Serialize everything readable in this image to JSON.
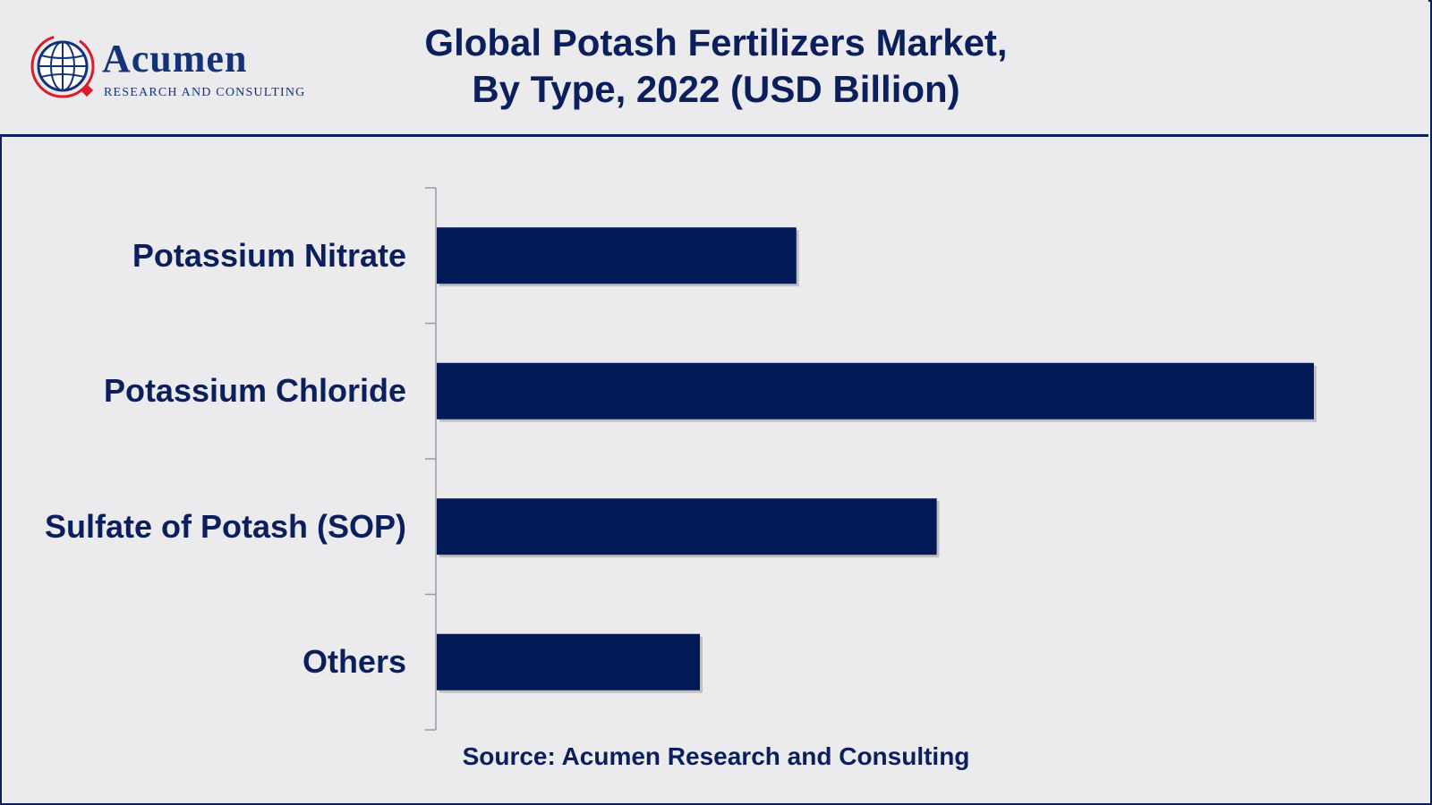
{
  "header": {
    "logo": {
      "name": "Acumen",
      "tagline": "RESEARCH AND CONSULTING",
      "icon": "globe-icon"
    },
    "title_line1": "Global Potash Fertilizers Market,",
    "title_line2": "By Type, 2022 (USD Billion)"
  },
  "colors": {
    "bar": "#021b57",
    "text": "#0b1f5c",
    "background": "#ebebee",
    "accent_red": "#d81e2a"
  },
  "chart_data": {
    "type": "bar",
    "orientation": "horizontal",
    "categories": [
      "Potassium Nitrate",
      "Potassium Chloride",
      "Sulfate of Potash (SOP)",
      "Others"
    ],
    "values": [
      4.1,
      10.0,
      5.7,
      3.0
    ],
    "xlim": [
      0,
      10.0
    ],
    "xlabel": "",
    "ylabel": "",
    "grid": false,
    "legend": "none"
  },
  "footer": {
    "source": "Source: Acumen Research and Consulting"
  }
}
